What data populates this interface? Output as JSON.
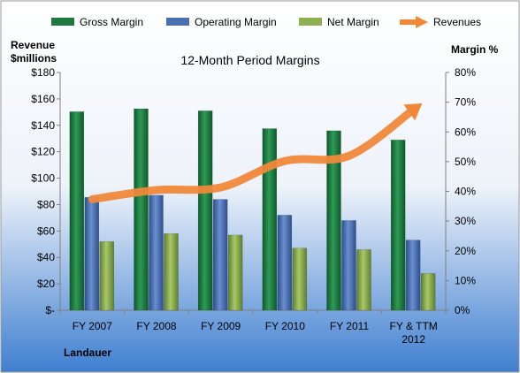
{
  "chart_data": {
    "type": "bar",
    "title": "12-Month Period Margins",
    "company": "Landauer",
    "left_axis_title": [
      "Revenue",
      "$millions"
    ],
    "right_axis_title": "Margin %",
    "categories": [
      [
        "FY 2007"
      ],
      [
        "FY 2008"
      ],
      [
        "FY 2009"
      ],
      [
        "FY 2010"
      ],
      [
        "FY 2011"
      ],
      [
        "FY & TTM",
        "2012"
      ]
    ],
    "left_ticks": [
      "$-",
      "$20",
      "$40",
      "$60",
      "$80",
      "$100",
      "$120",
      "$140",
      "$160",
      "$180"
    ],
    "right_ticks": [
      "0%",
      "10%",
      "20%",
      "30%",
      "40%",
      "50%",
      "60%",
      "70%",
      "80%"
    ],
    "ylim_left": [
      0,
      180
    ],
    "ylim_right": [
      0,
      80
    ],
    "legend_position": "top",
    "series": [
      {
        "name": "Gross Margin",
        "axis": "right",
        "color": "#1f7a3f",
        "values": [
          66.8,
          67.8,
          67.1,
          61.1,
          60.4,
          57.3
        ]
      },
      {
        "name": "Operating Margin",
        "axis": "right",
        "color": "#4a6fb5",
        "values": [
          38.0,
          38.7,
          37.3,
          32.0,
          30.2,
          23.6
        ]
      },
      {
        "name": "Net Margin",
        "axis": "right",
        "color": "#8fb050",
        "values": [
          23.1,
          25.8,
          25.3,
          20.9,
          20.4,
          12.4
        ]
      },
      {
        "name": "Revenues",
        "axis": "left",
        "type": "line",
        "color": "#f0883a",
        "values": [
          84,
          91,
          93,
          113,
          117,
          152
        ]
      }
    ]
  }
}
